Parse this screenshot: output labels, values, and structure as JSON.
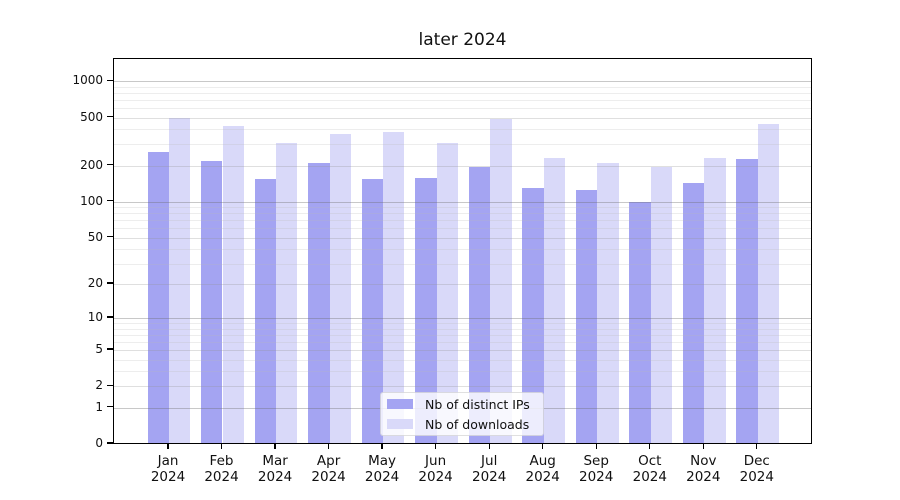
{
  "header": {
    "title": "later 2024"
  },
  "chart_data": {
    "type": "bar",
    "title": "later 2024",
    "categories": [
      "Jan 2024",
      "Feb 2024",
      "Mar 2024",
      "Apr 2024",
      "May 2024",
      "Jun 2024",
      "Jul 2024",
      "Aug 2024",
      "Sep 2024",
      "Oct 2024",
      "Nov 2024",
      "Dec 2024"
    ],
    "series": [
      {
        "name": "Nb of distinct IPs",
        "color": "#a4a4f2",
        "values": [
          250,
          212,
          148,
          204,
          150,
          151,
          189,
          126,
          120,
          95,
          139,
          217
        ]
      },
      {
        "name": "Nb of downloads",
        "color": "#d9d9f9",
        "values": [
          481,
          413,
          298,
          355,
          368,
          298,
          466,
          221,
          202,
          189,
          222,
          426
        ]
      }
    ],
    "xlabel": "",
    "ylabel": "",
    "yscale": "log1p",
    "y_ticks": [
      0,
      1,
      2,
      5,
      10,
      20,
      50,
      100,
      200,
      500,
      1000
    ],
    "ylim": [
      0,
      1465
    ],
    "grid": true,
    "legend_position": "lower center"
  }
}
